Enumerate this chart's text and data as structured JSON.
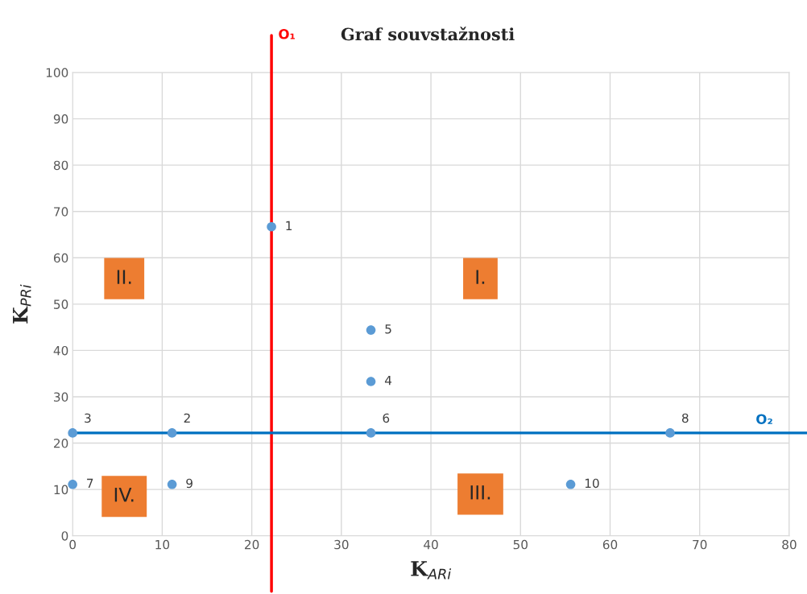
{
  "chart_data": {
    "type": "scatter",
    "title": "Graf souvstažnosti",
    "xlabel": "K$_{ARi}$",
    "ylabel": "K$_{PRi}$",
    "x": [
      22.2,
      11.1,
      0,
      33.3,
      33.3,
      33.3,
      0,
      66.7,
      11.1,
      55.6
    ],
    "series": [
      {
        "color": "#5b9bd5",
        "values": [
          66.7,
          22.2,
          22.2,
          33.3,
          44.4,
          22.2,
          11.1,
          22.2,
          11.1,
          11.1
        ]
      }
    ],
    "marker": "circle",
    "xlim": [
      0,
      80
    ],
    "xticks": [
      0,
      10,
      20,
      30,
      40,
      50,
      60,
      70,
      80
    ],
    "ylim": [
      0,
      100
    ],
    "yticks": [
      0,
      10,
      20,
      30,
      40,
      50,
      60,
      70,
      80,
      90,
      100
    ],
    "grid": true,
    "legend": false,
    "ref_lines": [
      {
        "axis": "x",
        "value": 22.2,
        "label": "O₁",
        "color": "#ff0000"
      },
      {
        "axis": "y",
        "value": 22.2,
        "label": "O₂",
        "color": "#0070c0"
      }
    ],
    "annotations": [
      "I.",
      "II.",
      "III.",
      "IV.",
      {
        "text": "1",
        "x": 22.2,
        "y": 66.7
      },
      {
        "text": "2",
        "x": 11.1,
        "y": 22.2
      },
      {
        "text": "3",
        "x": 0,
        "y": 22.2
      },
      {
        "text": "4",
        "x": 33.3,
        "y": 33.3
      },
      {
        "text": "5",
        "x": 33.3,
        "y": 44.4
      },
      {
        "text": "6",
        "x": 33.3,
        "y": 22.2
      },
      {
        "text": "7",
        "x": 0,
        "y": 11.1
      },
      {
        "text": "8",
        "x": 66.7,
        "y": 22.2
      },
      {
        "text": "9",
        "x": 11.1,
        "y": 11.1
      },
      {
        "text": "10",
        "x": 55.6,
        "y": 11.1
      }
    ]
  }
}
